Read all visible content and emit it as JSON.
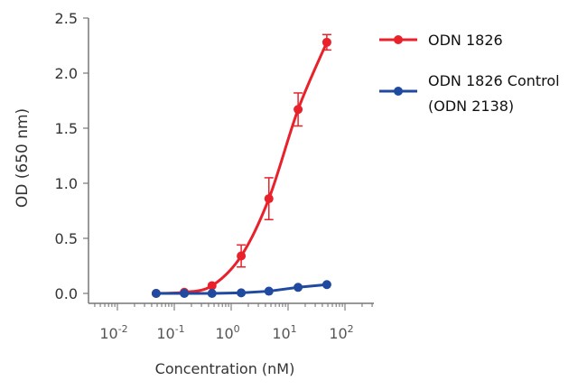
{
  "chart_data": {
    "type": "line",
    "xlabel": "Concentration (nM)",
    "ylabel": "OD (650 nm)",
    "xscale": "log",
    "xlim": [
      0.004,
      150
    ],
    "ylim": [
      0,
      2.5
    ],
    "xticks": [
      {
        "base": "10",
        "exp": "-2"
      },
      {
        "base": "10",
        "exp": "-1"
      },
      {
        "base": "10",
        "exp": "0"
      },
      {
        "base": "10",
        "exp": "1"
      },
      {
        "base": "10",
        "exp": "2"
      }
    ],
    "yticks": [
      "0.0",
      "0.5",
      "1.0",
      "1.5",
      "2.0",
      "2.5"
    ],
    "legend_position": "right",
    "grid": false,
    "x": [
      0.048,
      0.15,
      0.46,
      1.5,
      4.6,
      15,
      48
    ],
    "series": [
      {
        "name": "ODN 1826",
        "color": "#e8212b",
        "values": [
          0.0,
          0.01,
          0.07,
          0.34,
          0.86,
          1.67,
          2.28
        ],
        "errors": [
          0,
          0,
          0,
          0.1,
          0.19,
          0.15,
          0.07
        ],
        "smooth": true
      },
      {
        "name": "ODN 1826 Control",
        "name_line2": "(ODN 2138)",
        "color": "#1f4aa0",
        "values": [
          0.0,
          0.0,
          0.0,
          0.005,
          0.02,
          0.055,
          0.08
        ],
        "errors": [
          0,
          0,
          0,
          0,
          0,
          0,
          0
        ],
        "smooth": false
      }
    ]
  }
}
